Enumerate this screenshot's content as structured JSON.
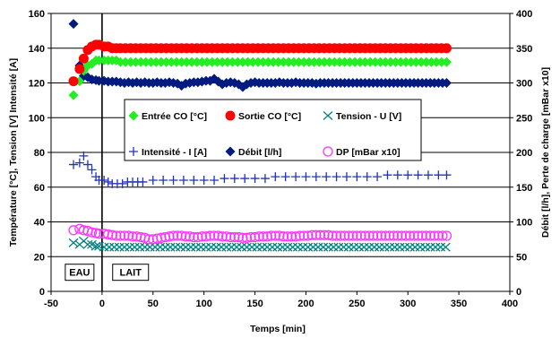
{
  "chart_data": {
    "type": "scatter",
    "title": "",
    "xlabel": "Temps [min]",
    "ylabel_left": "Température [°C], Tension [V] Intensité [A]",
    "ylabel_right": "Débit [l/h], Perte de charge [mBar x10]",
    "xlim": [
      -50,
      400
    ],
    "ylim_left": [
      0,
      160
    ],
    "ylim_right": [
      0,
      400
    ],
    "x_ticks": [
      "-50",
      "0",
      "50",
      "100",
      "150",
      "200",
      "250",
      "300",
      "350",
      "400"
    ],
    "y_ticks_left": [
      "0",
      "20",
      "40",
      "60",
      "80",
      "100",
      "120",
      "140",
      "160"
    ],
    "y_ticks_right": [
      "0",
      "50",
      "100",
      "150",
      "200",
      "250",
      "300",
      "350",
      "400"
    ],
    "grid": "horizontal",
    "legend_placement": "center-left",
    "annotations": [
      {
        "text": "EAU",
        "x": -22,
        "y": 11
      },
      {
        "text": "LAIT",
        "x": 28,
        "y": 11
      }
    ],
    "vertical_line_x": 0,
    "series": [
      {
        "name": "Entrée CO [°C]",
        "axis": "left",
        "marker": "diamond",
        "color": "#22ee22",
        "points": [
          [
            -28,
            113
          ],
          [
            -22,
            121
          ],
          [
            -18,
            127
          ],
          [
            -14,
            130
          ],
          [
            -10,
            131
          ],
          [
            -6,
            133
          ],
          [
            -3,
            133
          ],
          [
            2,
            133
          ],
          [
            6,
            133
          ],
          [
            10,
            133
          ],
          [
            14,
            133
          ]
        ],
        "steady": {
          "from": 18,
          "to": 338,
          "step": 5,
          "y": 132
        }
      },
      {
        "name": "Sortie CO [°C]",
        "axis": "left",
        "marker": "circle",
        "color": "#ff0000",
        "points": [
          [
            -28,
            121
          ],
          [
            -22,
            128
          ],
          [
            -18,
            134
          ],
          [
            -14,
            139
          ],
          [
            -10,
            141
          ],
          [
            -6,
            142
          ],
          [
            -3,
            142
          ],
          [
            2,
            141
          ],
          [
            6,
            141
          ],
          [
            10,
            140
          ],
          [
            14,
            140
          ]
        ],
        "steady": {
          "from": 18,
          "to": 338,
          "step": 5,
          "y": 140
        }
      },
      {
        "name": "Tension - U [V]",
        "axis": "left",
        "marker": "x",
        "color": "#008080",
        "points": [
          [
            -28,
            28
          ],
          [
            -22,
            27
          ],
          [
            -18,
            29
          ],
          [
            -14,
            27
          ],
          [
            -10,
            27
          ],
          [
            -6,
            26
          ],
          [
            -3,
            26
          ]
        ],
        "steady": {
          "from": 2,
          "to": 338,
          "step": 5,
          "y": 25.5
        }
      },
      {
        "name": "Intensité - I [A]",
        "axis": "left",
        "marker": "plus",
        "color": "#2233bb",
        "points": [
          [
            -28,
            73
          ],
          [
            -22,
            74
          ],
          [
            -18,
            78
          ],
          [
            -14,
            73
          ],
          [
            -10,
            70
          ],
          [
            -6,
            66
          ],
          [
            -3,
            64
          ],
          [
            2,
            64
          ],
          [
            6,
            63
          ],
          [
            10,
            62
          ],
          [
            15,
            62
          ],
          [
            20,
            62
          ],
          [
            25,
            63
          ],
          [
            30,
            63
          ],
          [
            35,
            63
          ],
          [
            40,
            63
          ],
          [
            50,
            64
          ],
          [
            60,
            64
          ],
          [
            70,
            64
          ],
          [
            80,
            64
          ],
          [
            90,
            64
          ],
          [
            100,
            64
          ],
          [
            110,
            64
          ],
          [
            120,
            65
          ],
          [
            130,
            65
          ],
          [
            140,
            65
          ],
          [
            150,
            65
          ],
          [
            160,
            65
          ],
          [
            170,
            66
          ],
          [
            180,
            66
          ],
          [
            190,
            66
          ],
          [
            200,
            66
          ],
          [
            210,
            66
          ],
          [
            220,
            66
          ],
          [
            230,
            66
          ],
          [
            240,
            66
          ],
          [
            250,
            66
          ],
          [
            260,
            66
          ],
          [
            270,
            66
          ],
          [
            280,
            67
          ],
          [
            290,
            67
          ],
          [
            300,
            67
          ],
          [
            310,
            67
          ],
          [
            320,
            67
          ],
          [
            330,
            67
          ],
          [
            338,
            67
          ]
        ]
      },
      {
        "name": "Débit [l/h]",
        "axis": "right",
        "marker": "diamond",
        "color": "#001a80",
        "points": [
          [
            -28,
            385
          ],
          [
            -22,
            325
          ],
          [
            -18,
            310
          ],
          [
            -14,
            308
          ],
          [
            -10,
            305
          ],
          [
            -6,
            304
          ],
          [
            -3,
            303
          ],
          [
            2,
            303
          ],
          [
            6,
            302
          ],
          [
            10,
            302
          ],
          [
            14,
            302
          ],
          [
            18,
            301
          ],
          [
            22,
            300
          ],
          [
            26,
            301
          ],
          [
            30,
            300
          ],
          [
            34,
            301
          ],
          [
            38,
            300
          ],
          [
            42,
            301
          ],
          [
            46,
            300
          ],
          [
            50,
            300
          ],
          [
            54,
            301
          ],
          [
            58,
            300
          ],
          [
            62,
            300
          ],
          [
            66,
            301
          ],
          [
            70,
            300
          ],
          [
            74,
            299
          ],
          [
            78,
            296
          ],
          [
            82,
            299
          ],
          [
            86,
            300
          ],
          [
            90,
            301
          ],
          [
            94,
            301
          ],
          [
            98,
            302
          ],
          [
            102,
            303
          ],
          [
            106,
            303
          ],
          [
            110,
            306
          ],
          [
            114,
            302
          ],
          [
            118,
            298
          ],
          [
            122,
            300
          ],
          [
            126,
            301
          ],
          [
            130,
            300
          ],
          [
            134,
            298
          ],
          [
            138,
            294
          ],
          [
            142,
            298
          ],
          [
            146,
            300
          ],
          [
            150,
            301
          ],
          [
            154,
            300
          ],
          [
            158,
            300
          ],
          [
            162,
            300
          ],
          [
            166,
            300
          ],
          [
            170,
            300
          ],
          [
            174,
            301
          ],
          [
            178,
            300
          ],
          [
            182,
            300
          ],
          [
            186,
            300
          ],
          [
            190,
            301
          ],
          [
            194,
            300
          ],
          [
            198,
            300
          ],
          [
            202,
            300
          ],
          [
            206,
            300
          ],
          [
            210,
            299
          ],
          [
            214,
            300
          ],
          [
            218,
            300
          ],
          [
            222,
            300
          ],
          [
            226,
            300
          ],
          [
            230,
            300
          ],
          [
            234,
            300
          ],
          [
            238,
            300
          ],
          [
            242,
            300
          ],
          [
            246,
            300
          ],
          [
            250,
            300
          ],
          [
            254,
            300
          ],
          [
            258,
            300
          ],
          [
            262,
            300
          ],
          [
            266,
            300
          ],
          [
            270,
            300
          ],
          [
            274,
            300
          ],
          [
            278,
            300
          ],
          [
            282,
            300
          ],
          [
            286,
            300
          ],
          [
            290,
            300
          ],
          [
            294,
            300
          ],
          [
            298,
            300
          ],
          [
            302,
            300
          ],
          [
            306,
            300
          ],
          [
            310,
            300
          ],
          [
            314,
            300
          ],
          [
            318,
            300
          ],
          [
            322,
            300
          ],
          [
            326,
            300
          ],
          [
            330,
            300
          ],
          [
            334,
            300
          ],
          [
            338,
            300
          ]
        ]
      },
      {
        "name": "DP [mBar x10]",
        "axis": "right",
        "marker": "open-circle",
        "color": "#ff33ff",
        "points": [
          [
            -28,
            88
          ],
          [
            -22,
            90
          ],
          [
            -18,
            88
          ],
          [
            -14,
            87
          ],
          [
            -10,
            85
          ],
          [
            -6,
            84
          ],
          [
            -3,
            83
          ],
          [
            2,
            83
          ],
          [
            6,
            82
          ],
          [
            10,
            81
          ],
          [
            14,
            80
          ],
          [
            18,
            80
          ],
          [
            22,
            80
          ],
          [
            26,
            80
          ],
          [
            30,
            79
          ],
          [
            34,
            79
          ],
          [
            38,
            78
          ],
          [
            42,
            77
          ],
          [
            46,
            75
          ],
          [
            50,
            75
          ],
          [
            54,
            76
          ],
          [
            58,
            77
          ],
          [
            62,
            78
          ],
          [
            66,
            79
          ],
          [
            70,
            80
          ],
          [
            74,
            80
          ],
          [
            78,
            80
          ],
          [
            82,
            79
          ],
          [
            86,
            79
          ],
          [
            90,
            78
          ],
          [
            94,
            78
          ],
          [
            98,
            79
          ],
          [
            102,
            79
          ],
          [
            106,
            80
          ],
          [
            110,
            80
          ],
          [
            114,
            80
          ],
          [
            118,
            79
          ],
          [
            122,
            79
          ],
          [
            126,
            78
          ],
          [
            130,
            78
          ],
          [
            134,
            78
          ],
          [
            138,
            77
          ],
          [
            142,
            77
          ],
          [
            146,
            78
          ],
          [
            150,
            78
          ],
          [
            154,
            79
          ],
          [
            158,
            79
          ],
          [
            162,
            79
          ],
          [
            166,
            80
          ],
          [
            170,
            80
          ],
          [
            174,
            80
          ],
          [
            178,
            79
          ],
          [
            182,
            79
          ],
          [
            186,
            79
          ],
          [
            190,
            79
          ],
          [
            194,
            80
          ],
          [
            198,
            80
          ],
          [
            202,
            80
          ],
          [
            206,
            81
          ],
          [
            210,
            81
          ],
          [
            214,
            81
          ],
          [
            218,
            81
          ],
          [
            222,
            81
          ],
          [
            226,
            80
          ],
          [
            230,
            80
          ],
          [
            234,
            80
          ],
          [
            238,
            80
          ],
          [
            242,
            80
          ],
          [
            246,
            80
          ],
          [
            250,
            80
          ],
          [
            254,
            80
          ],
          [
            258,
            80
          ],
          [
            262,
            80
          ],
          [
            266,
            80
          ],
          [
            270,
            80
          ],
          [
            274,
            80
          ],
          [
            278,
            80
          ],
          [
            282,
            80
          ],
          [
            286,
            80
          ],
          [
            290,
            80
          ],
          [
            294,
            80
          ],
          [
            298,
            80
          ],
          [
            302,
            80
          ],
          [
            306,
            80
          ],
          [
            310,
            80
          ],
          [
            314,
            80
          ],
          [
            318,
            80
          ],
          [
            322,
            80
          ],
          [
            326,
            80
          ],
          [
            330,
            80
          ],
          [
            334,
            80
          ],
          [
            338,
            80
          ]
        ]
      }
    ]
  }
}
